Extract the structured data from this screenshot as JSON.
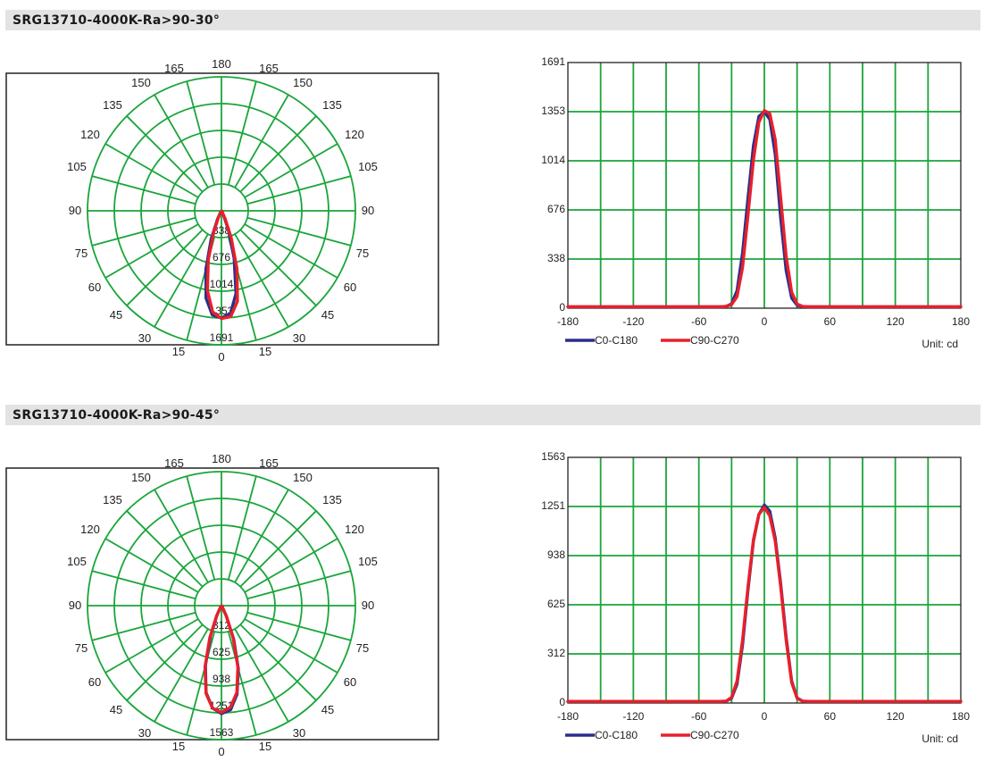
{
  "sections": [
    {
      "title": "SRG13710-4000K-Ra>90-30°",
      "polar": {
        "angle_labels": [
          "180",
          "165",
          "165",
          "150",
          "150",
          "135",
          "135",
          "120",
          "120",
          "105",
          "105",
          "90",
          "90",
          "75",
          "75",
          "60",
          "60",
          "45",
          "45",
          "30",
          "30",
          "15",
          "15",
          "0"
        ],
        "ring_labels": [
          "338",
          "676",
          "1014",
          "1353",
          "1691"
        ]
      },
      "chart_data": {
        "type": "line",
        "x": [
          -180,
          -150,
          -120,
          -90,
          -60,
          -45,
          -40,
          -35,
          -30,
          -25,
          -20,
          -15,
          -10,
          -5,
          0,
          5,
          10,
          15,
          20,
          25,
          30,
          35,
          40,
          45,
          60,
          90,
          120,
          150,
          180
        ],
        "series": [
          {
            "name": "C0-C180",
            "color": "#2b2e8c",
            "values": [
              10,
              10,
              10,
              10,
              10,
              10,
              10,
              12,
              30,
              120,
              380,
              760,
              1120,
              1320,
              1353,
              1300,
              1060,
              620,
              260,
              70,
              20,
              10,
              10,
              10,
              10,
              10,
              10,
              10,
              10
            ]
          },
          {
            "name": "C90-C270",
            "color": "#e8202a",
            "values": [
              10,
              10,
              10,
              10,
              10,
              10,
              10,
              12,
              24,
              80,
              280,
              640,
              1020,
              1280,
              1360,
              1340,
              1160,
              760,
              360,
              110,
              28,
              12,
              10,
              10,
              10,
              10,
              10,
              10,
              10
            ]
          }
        ],
        "xticks": [
          "-180",
          "-120",
          "-60",
          "0",
          "60",
          "120",
          "180"
        ],
        "yticks": [
          "0",
          "338",
          "676",
          "1014",
          "1353",
          "1691"
        ],
        "xlim": [
          -180,
          180
        ],
        "ylim": [
          0,
          1691
        ],
        "unit": "Unit: cd"
      }
    },
    {
      "title": "SRG13710-4000K-Ra>90-45°",
      "polar": {
        "angle_labels": [
          "180",
          "165",
          "165",
          "150",
          "150",
          "135",
          "135",
          "120",
          "120",
          "105",
          "105",
          "90",
          "90",
          "75",
          "75",
          "60",
          "60",
          "45",
          "45",
          "30",
          "30",
          "15",
          "15",
          "0"
        ],
        "ring_labels": [
          "312",
          "625",
          "938",
          "1251",
          "1563"
        ]
      },
      "chart_data": {
        "type": "line",
        "x": [
          -180,
          -150,
          -120,
          -90,
          -60,
          -45,
          -40,
          -35,
          -30,
          -25,
          -20,
          -15,
          -10,
          -5,
          0,
          5,
          10,
          15,
          20,
          25,
          30,
          35,
          40,
          45,
          60,
          90,
          120,
          150,
          180
        ],
        "series": [
          {
            "name": "C0-C180",
            "color": "#2b2e8c",
            "values": [
              10,
              10,
              10,
              10,
              10,
              10,
              10,
              12,
              30,
              120,
              370,
              720,
              1030,
              1200,
              1260,
              1220,
              1050,
              760,
              420,
              140,
              32,
              12,
              10,
              10,
              10,
              10,
              10,
              10,
              10
            ]
          },
          {
            "name": "C90-C270",
            "color": "#e8202a",
            "values": [
              10,
              10,
              10,
              10,
              10,
              10,
              10,
              12,
              36,
              140,
              400,
              740,
              1040,
              1200,
              1245,
              1190,
              1030,
              740,
              400,
              130,
              30,
              12,
              10,
              10,
              10,
              10,
              10,
              10,
              10
            ]
          }
        ],
        "xticks": [
          "-180",
          "-120",
          "-60",
          "0",
          "60",
          "120",
          "180"
        ],
        "yticks": [
          "0",
          "312",
          "625",
          "938",
          "1251",
          "1563"
        ],
        "xlim": [
          -180,
          180
        ],
        "ylim": [
          0,
          1563
        ],
        "unit": "Unit: cd"
      }
    }
  ]
}
